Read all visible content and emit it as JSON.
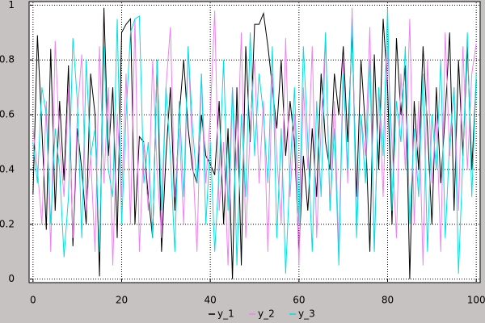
{
  "chart_data": {
    "type": "line",
    "x": [
      0,
      1,
      2,
      3,
      4,
      5,
      6,
      7,
      8,
      9,
      10,
      11,
      12,
      13,
      14,
      15,
      16,
      17,
      18,
      19,
      20,
      21,
      22,
      23,
      24,
      25,
      26,
      27,
      28,
      29,
      30,
      31,
      32,
      33,
      34,
      35,
      36,
      37,
      38,
      39,
      40,
      41,
      42,
      43,
      44,
      45,
      46,
      47,
      48,
      49,
      50,
      51,
      52,
      53,
      54,
      55,
      56,
      57,
      58,
      59,
      60,
      61,
      62,
      63,
      64,
      65,
      66,
      67,
      68,
      69,
      70,
      71,
      72,
      73,
      74,
      75,
      76,
      77,
      78,
      79,
      80,
      81,
      82,
      83,
      84,
      85,
      86,
      87,
      88,
      89,
      90,
      91,
      92,
      93,
      94,
      95,
      96,
      97,
      98,
      99,
      100
    ],
    "series": [
      {
        "name": "y_1",
        "color": "#000000",
        "values": [
          0.31,
          0.89,
          0.55,
          0.18,
          0.84,
          0.25,
          0.65,
          0.36,
          0.78,
          0.12,
          0.55,
          0.4,
          0.2,
          0.75,
          0.6,
          0.01,
          0.99,
          0.45,
          0.7,
          0.15,
          0.9,
          0.93,
          0.95,
          0.2,
          0.52,
          0.5,
          0.3,
          0.15,
          0.8,
          0.1,
          0.45,
          0.7,
          0.25,
          0.6,
          0.8,
          0.55,
          0.4,
          0.35,
          0.6,
          0.45,
          0.42,
          0.38,
          0.65,
          0.2,
          0.55,
          0.0,
          0.7,
          0.05,
          0.85,
          0.5,
          0.93,
          0.93,
          0.97,
          0.85,
          0.7,
          0.55,
          0.8,
          0.45,
          0.65,
          0.5,
          0.1,
          0.45,
          0.25,
          0.55,
          0.3,
          0.75,
          0.5,
          0.4,
          0.75,
          0.6,
          0.85,
          0.5,
          0.9,
          0.3,
          0.8,
          0.55,
          0.1,
          0.82,
          0.4,
          0.95,
          0.7,
          0.2,
          0.88,
          0.6,
          0.78,
          0.0,
          0.65,
          0.4,
          0.85,
          0.55,
          0.2,
          0.7,
          0.35,
          0.6,
          0.9,
          0.25,
          0.8,
          0.45,
          0.85,
          0.4,
          0.73
        ]
      },
      {
        "name": "y_2",
        "color": "#ee82ee",
        "values": [
          0.55,
          0.4,
          0.2,
          0.65,
          0.1,
          0.87,
          0.5,
          0.3,
          0.7,
          0.15,
          0.6,
          0.82,
          0.25,
          0.45,
          0.1,
          0.85,
          0.35,
          0.7,
          0.05,
          0.6,
          0.3,
          0.75,
          0.2,
          0.95,
          0.1,
          0.5,
          0.25,
          0.8,
          0.4,
          0.15,
          0.7,
          0.92,
          0.3,
          0.55,
          0.2,
          0.85,
          0.45,
          0.1,
          0.75,
          0.35,
          0.6,
          0.98,
          0.25,
          0.5,
          0.05,
          0.7,
          0.4,
          0.9,
          0.15,
          0.55,
          0.8,
          0.35,
          0.65,
          0.1,
          0.75,
          0.45,
          0.2,
          0.88,
          0.3,
          0.6,
          0.05,
          0.7,
          0.4,
          0.85,
          0.15,
          0.55,
          0.9,
          0.25,
          0.65,
          0.1,
          0.8,
          0.35,
          0.99,
          0.2,
          0.6,
          0.45,
          0.92,
          0.1,
          0.7,
          0.3,
          0.85,
          0.5,
          0.15,
          0.75,
          0.4,
          0.95,
          0.2,
          0.65,
          0.05,
          0.8,
          0.35,
          0.6,
          0.1,
          0.9,
          0.45,
          0.7,
          0.25,
          0.85,
          0.4,
          0.75,
          0.86
        ]
      },
      {
        "name": "y_3",
        "color": "#00e0e0",
        "values": [
          0.5,
          0.35,
          0.7,
          0.6,
          0.2,
          0.55,
          0.4,
          0.08,
          0.3,
          0.88,
          0.65,
          0.15,
          0.8,
          0.45,
          0.55,
          0.1,
          0.85,
          0.4,
          0.3,
          0.95,
          0.2,
          0.6,
          0.9,
          0.95,
          0.96,
          0.35,
          0.5,
          0.15,
          0.8,
          0.25,
          0.7,
          0.45,
          0.1,
          0.65,
          0.3,
          0.85,
          0.55,
          0.35,
          0.75,
          0.2,
          0.5,
          0.1,
          0.4,
          0.8,
          0.25,
          0.7,
          0.05,
          0.6,
          0.3,
          0.9,
          0.45,
          0.75,
          0.6,
          0.35,
          0.85,
          0.15,
          0.55,
          0.02,
          0.4,
          0.7,
          0.2,
          0.85,
          0.5,
          0.1,
          0.65,
          0.3,
          0.9,
          0.25,
          0.55,
          0.05,
          0.75,
          0.4,
          0.95,
          0.15,
          0.6,
          0.35,
          0.8,
          0.1,
          0.7,
          0.45,
          0.99,
          0.25,
          0.65,
          0.5,
          0.85,
          0.2,
          0.55,
          0.3,
          0.75,
          0.1,
          0.6,
          0.4,
          0.8,
          0.15,
          0.5,
          0.7,
          0.02,
          0.45,
          0.9,
          0.3,
          0.75
        ]
      }
    ],
    "xlim": [
      -0.7,
      100.7
    ],
    "xticks": [
      0,
      20,
      40,
      60,
      80,
      100
    ],
    "ylim": [
      -0.01,
      1.01
    ],
    "yticks": [
      0,
      0.2,
      0.4,
      0.6,
      0.8,
      1
    ],
    "grid": true,
    "legend": "bottom"
  }
}
